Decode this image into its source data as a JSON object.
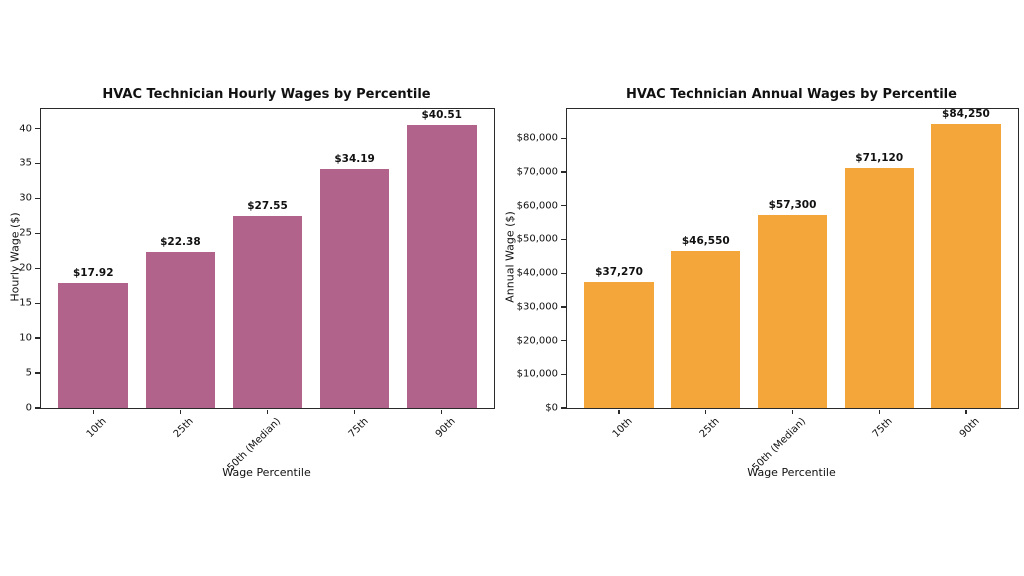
{
  "figure": {
    "background_color": "#ffffff",
    "text_color": "#111111",
    "axis_color": "#2a2a2a"
  },
  "chart_data": [
    {
      "type": "bar",
      "title": "HVAC Technician Hourly Wages by Percentile",
      "xlabel": "Wage Percentile",
      "ylabel": "Hourly Wage ($)",
      "categories": [
        "10th",
        "25th",
        "50th (Median)",
        "75th",
        "90th"
      ],
      "values": [
        17.92,
        22.38,
        27.55,
        34.19,
        40.51
      ],
      "value_labels": [
        "$17.92",
        "$22.38",
        "$27.55",
        "$34.19",
        "$40.51"
      ],
      "bar_color": "#b1638c",
      "ylim": [
        0,
        42.8
      ],
      "yticks": [
        {
          "value": 0,
          "label": "0"
        },
        {
          "value": 5,
          "label": "5"
        },
        {
          "value": 10,
          "label": "10"
        },
        {
          "value": 15,
          "label": "15"
        },
        {
          "value": 20,
          "label": "20"
        },
        {
          "value": 25,
          "label": "25"
        },
        {
          "value": 30,
          "label": "30"
        },
        {
          "value": 35,
          "label": "35"
        },
        {
          "value": 40,
          "label": "40"
        }
      ],
      "grid": false,
      "legend": "none",
      "xtick_rotation_deg": 45
    },
    {
      "type": "bar",
      "title": "HVAC Technician Annual Wages by Percentile",
      "xlabel": "Wage Percentile",
      "ylabel": "Annual Wage ($)",
      "categories": [
        "10th",
        "25th",
        "50th (Median)",
        "75th",
        "90th"
      ],
      "values": [
        37270,
        46550,
        57300,
        71120,
        84250
      ],
      "value_labels": [
        "$37,270",
        "$46,550",
        "$57,300",
        "$71,120",
        "$84,250"
      ],
      "bar_color": "#f4a63a",
      "ylim": [
        0,
        88700
      ],
      "yticks": [
        {
          "value": 0,
          "label": "$0"
        },
        {
          "value": 10000,
          "label": "$10,000"
        },
        {
          "value": 20000,
          "label": "$20,000"
        },
        {
          "value": 30000,
          "label": "$30,000"
        },
        {
          "value": 40000,
          "label": "$40,000"
        },
        {
          "value": 50000,
          "label": "$50,000"
        },
        {
          "value": 60000,
          "label": "$60,000"
        },
        {
          "value": 70000,
          "label": "$70,000"
        },
        {
          "value": 80000,
          "label": "$80,000"
        }
      ],
      "grid": false,
      "legend": "none",
      "xtick_rotation_deg": 45
    }
  ]
}
